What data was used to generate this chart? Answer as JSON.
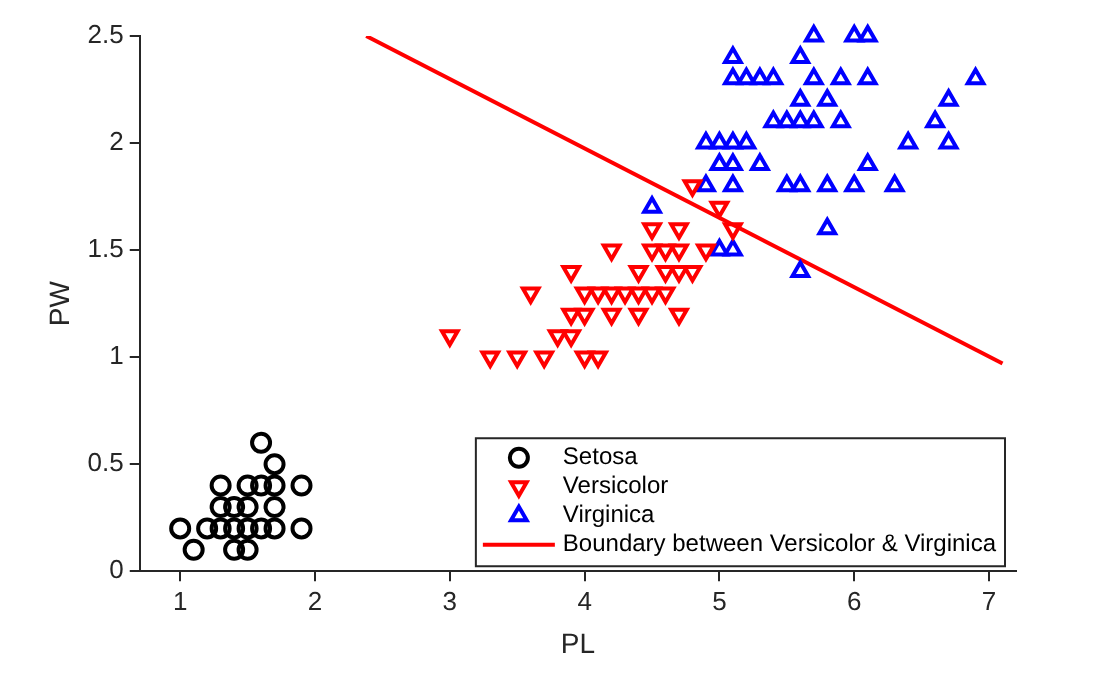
{
  "chart_data": {
    "type": "scatter",
    "xlabel": "PL",
    "ylabel": "PW",
    "xlim": [
      0.7,
      7.2
    ],
    "ylim": [
      0,
      2.5
    ],
    "xticks": [
      1,
      2,
      3,
      4,
      5,
      6,
      7
    ],
    "yticks": [
      0,
      0.5,
      1,
      1.5,
      2,
      2.5
    ],
    "grid": false,
    "legend": "bottom right",
    "series": [
      {
        "name": "Setosa",
        "color": "#000000",
        "marker": "circle",
        "x": [
          1.4,
          1.3,
          1.5,
          1.7,
          1.4,
          1.5,
          1.6,
          1.4,
          1.1,
          1.2,
          1.5,
          1.3,
          1.7,
          1.5,
          1.7,
          1.0,
          1.7,
          1.9,
          1.6,
          1.3,
          1.6,
          1.9
        ],
        "values": [
          0.2,
          0.2,
          0.2,
          0.4,
          0.3,
          0.1,
          0.2,
          0.1,
          0.1,
          0.2,
          0.4,
          0.4,
          0.3,
          0.3,
          0.2,
          0.2,
          0.5,
          0.2,
          0.4,
          0.3,
          0.6,
          0.4
        ]
      },
      {
        "name": "Versicolor",
        "color": "#ff0000",
        "marker": "triangle_down",
        "x": [
          4.7,
          4.5,
          4.9,
          4.0,
          4.6,
          4.5,
          4.7,
          3.3,
          4.6,
          3.9,
          3.5,
          4.2,
          4.0,
          3.6,
          4.4,
          4.1,
          3.9,
          4.8,
          4.7,
          4.3,
          4.8,
          5.0,
          3.8,
          3.7,
          3.9,
          5.1,
          4.5,
          4.7,
          4.4,
          4.1,
          4.4,
          4.6,
          4.0,
          4.2,
          4.2,
          3.0
        ],
        "values": [
          1.4,
          1.5,
          1.5,
          1.3,
          1.5,
          1.3,
          1.6,
          1.0,
          1.3,
          1.4,
          1.0,
          1.5,
          1.0,
          1.3,
          1.4,
          1.0,
          1.1,
          1.8,
          1.2,
          1.3,
          1.4,
          1.7,
          1.1,
          1.0,
          1.2,
          1.6,
          1.6,
          1.5,
          1.3,
          1.3,
          1.2,
          1.4,
          1.2,
          1.3,
          1.2,
          1.1
        ]
      },
      {
        "name": "Virginica",
        "color": "#0000ff",
        "marker": "triangle",
        "x": [
          6.0,
          5.1,
          5.9,
          5.6,
          5.8,
          6.6,
          4.5,
          6.3,
          5.8,
          6.1,
          5.1,
          5.3,
          5.5,
          5.0,
          5.1,
          5.3,
          5.5,
          6.7,
          6.9,
          5.0,
          5.7,
          4.9,
          6.7,
          4.9,
          5.7,
          6.0,
          5.6,
          5.8,
          6.1,
          6.4,
          5.6,
          5.1,
          5.6,
          6.1,
          5.6,
          5.4,
          5.1,
          5.9,
          5.7,
          5.2,
          5.0,
          5.2,
          5.4,
          5.1
        ],
        "values": [
          2.5,
          1.9,
          2.1,
          1.8,
          2.2,
          2.1,
          1.7,
          1.8,
          1.8,
          2.5,
          2.0,
          1.9,
          2.1,
          2.0,
          2.4,
          2.3,
          1.8,
          2.2,
          2.3,
          1.5,
          2.3,
          2.0,
          2.0,
          1.8,
          2.1,
          1.8,
          2.1,
          1.6,
          1.9,
          2.0,
          2.2,
          1.5,
          1.4,
          2.3,
          2.4,
          2.1,
          2.3,
          2.3,
          2.5,
          2.3,
          1.9,
          2.0,
          2.3,
          1.8
        ]
      },
      {
        "name": "Boundary between Versicolor & Virginica",
        "type": "line",
        "color": "#ff0000",
        "marker": "none",
        "line_style": "solid",
        "x": [
          2.38,
          7.1
        ],
        "values": [
          2.5,
          0.97
        ]
      }
    ]
  }
}
